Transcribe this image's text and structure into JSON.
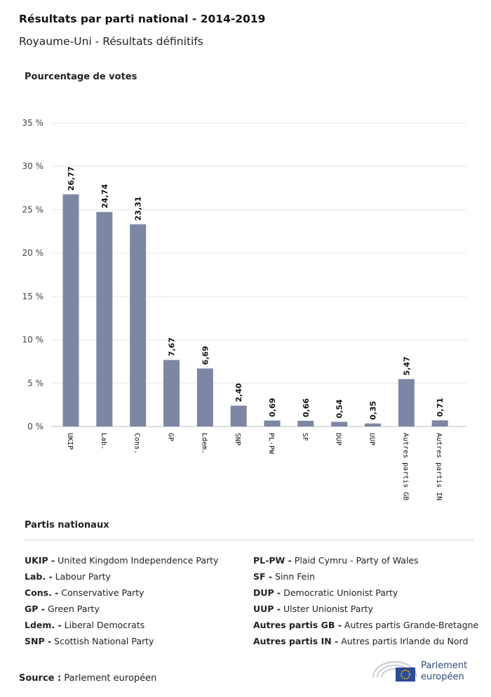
{
  "header": {
    "title": "Résultats par parti national - 2014-2019",
    "subtitle": "Royaume-Uni - Résultats définitifs"
  },
  "chart_data": {
    "type": "bar",
    "ylabel": "Pourcentage de votes",
    "ylim": [
      0,
      35
    ],
    "yticks": [
      "0 %",
      "5 %",
      "10 %",
      "15 %",
      "20 %",
      "25 %",
      "30 %",
      "35 %"
    ],
    "categories": [
      "UKIP",
      "Lab.",
      "Cons.",
      "GP",
      "Ldem.",
      "SNP",
      "PL-PW",
      "SF",
      "DUP",
      "UUP",
      "Autres partis GB",
      "Autres partis IN"
    ],
    "values": [
      26.77,
      24.74,
      23.31,
      7.67,
      6.69,
      2.4,
      0.69,
      0.66,
      0.54,
      0.35,
      5.47,
      0.71
    ],
    "value_labels": [
      "26,77",
      "24,74",
      "23,31",
      "7,67",
      "6,69",
      "2,40",
      "0,69",
      "0,66",
      "0,54",
      "0,35",
      "5,47",
      "0,71"
    ],
    "bar_color": "#7d87a3",
    "grid": true
  },
  "legend": {
    "title": "Partis nationaux",
    "left": [
      {
        "abbr": "UKIP -",
        "name": "United Kingdom Independence Party"
      },
      {
        "abbr": "Lab. -",
        "name": "Labour Party"
      },
      {
        "abbr": "Cons. -",
        "name": "Conservative Party"
      },
      {
        "abbr": "GP -",
        "name": "Green Party"
      },
      {
        "abbr": "Ldem. -",
        "name": "Liberal Democrats"
      },
      {
        "abbr": "SNP -",
        "name": "Scottish National Party"
      }
    ],
    "right": [
      {
        "abbr": "PL-PW -",
        "name": "Plaid Cymru - Party of Wales"
      },
      {
        "abbr": "SF -",
        "name": "Sinn Fein"
      },
      {
        "abbr": "DUP -",
        "name": "Democratic Unionist Party"
      },
      {
        "abbr": "UUP -",
        "name": "Ulster Unionist Party"
      },
      {
        "abbr": "Autres partis GB -",
        "name": "Autres partis Grande-Bretagne"
      },
      {
        "abbr": "Autres partis IN -",
        "name": "Autres partis Irlande du Nord"
      }
    ]
  },
  "footer": {
    "source_label": "Source :",
    "source_text": "Parlement européen",
    "logo_line1": "Parlement",
    "logo_line2": "européen"
  }
}
